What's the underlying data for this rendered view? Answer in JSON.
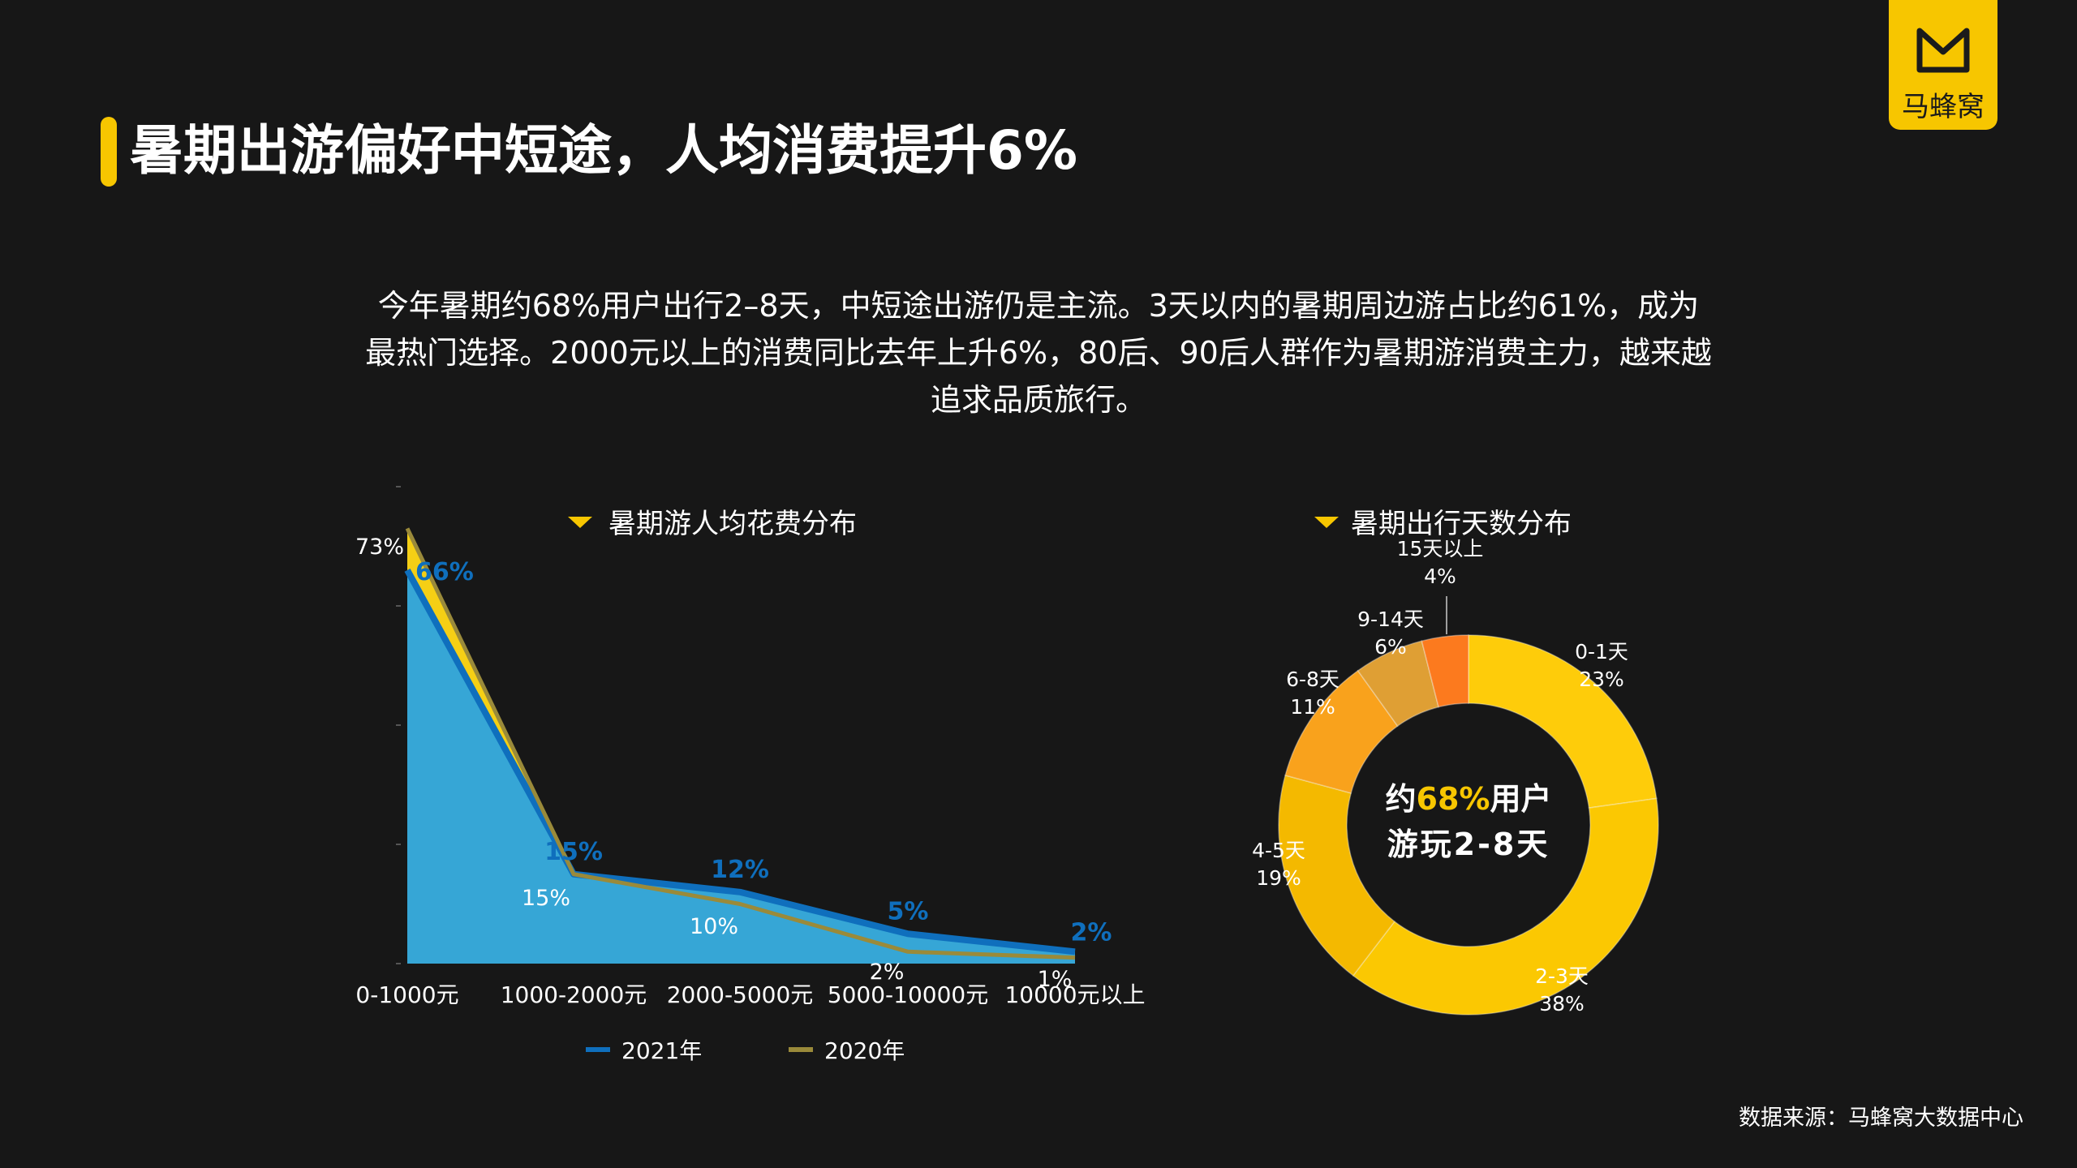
{
  "header": {
    "title": "暑期出游偏好中短途，人均消费提升6%",
    "logo_text": "马蜂窝"
  },
  "intro": {
    "lines": [
      "今年暑期约68%用户出行2–8天，中短途出游仍是主流。3天以内的暑期周边游占比约61%，成为",
      "最热门选择。2000元以上的消费同比去年上升6%，80后、90后人群作为暑期游消费主力，越来越",
      "追求品质旅行。"
    ]
  },
  "source": "数据来源：马蜂窝大数据中心",
  "colors": {
    "background": "#171717",
    "accent": "#f7c600",
    "series_2021_fill": "#36a6d6",
    "series_2021_line": "#0f6fbd",
    "series_2020_fill": "#f5cf15",
    "series_2020_line": "#9a8a3a"
  },
  "chart_data": [
    {
      "type": "area",
      "title": "暑期游人均花费分布",
      "categories": [
        "0-1000元",
        "1000-2000元",
        "2000-5000元",
        "5000-10000元",
        "10000元以上"
      ],
      "series": [
        {
          "name": "2021年",
          "values": [
            66,
            15,
            12,
            5,
            2
          ],
          "labels": [
            "66%",
            "15%",
            "12%",
            "5%",
            "2%"
          ]
        },
        {
          "name": "2020年",
          "values": [
            73,
            15,
            10,
            2,
            1
          ],
          "labels": [
            "73%",
            "15%",
            "10%",
            "2%",
            "1%"
          ]
        }
      ],
      "ylim": [
        0,
        80
      ],
      "legend_position": "bottom"
    },
    {
      "type": "pie",
      "title": "暑期出行天数分布",
      "center_text": {
        "line1_prefix": "约",
        "line1_highlight": "68%",
        "line1_suffix": "用户",
        "line2": "游玩2-8天"
      },
      "slices": [
        {
          "label": "0-1天",
          "value": 23,
          "pct": "23%",
          "color": "#fecc0a"
        },
        {
          "label": "2-3天",
          "value": 38,
          "pct": "38%",
          "color": "#fbc802"
        },
        {
          "label": "4-5天",
          "value": 19,
          "pct": "19%",
          "color": "#f4b900"
        },
        {
          "label": "6-8天",
          "value": 11,
          "pct": "11%",
          "color": "#f9a21c"
        },
        {
          "label": "9-14天",
          "value": 6,
          "pct": "6%",
          "color": "#df9f34"
        },
        {
          "label": "15天以上",
          "value": 4,
          "pct": "4%",
          "color": "#fc7a1e"
        }
      ]
    }
  ]
}
